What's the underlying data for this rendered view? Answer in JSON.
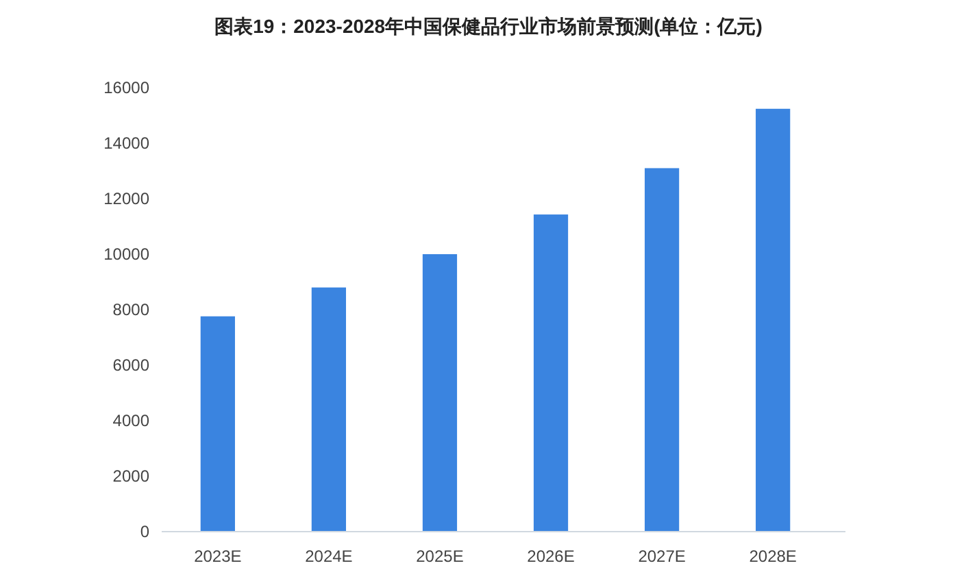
{
  "chart_data": {
    "type": "bar",
    "title": "图表19：2023-2028年中国保健品行业市场前景预测(单位：亿元)",
    "categories": [
      "2023E",
      "2024E",
      "2025E",
      "2026E",
      "2027E",
      "2028E"
    ],
    "values": [
      7760,
      8800,
      10000,
      11430,
      13100,
      15240
    ],
    "color": "#3a84e0",
    "ylim": [
      0,
      16000
    ],
    "yticks": [
      0,
      2000,
      4000,
      6000,
      8000,
      10000,
      12000,
      14000,
      16000
    ],
    "grid": false
  }
}
